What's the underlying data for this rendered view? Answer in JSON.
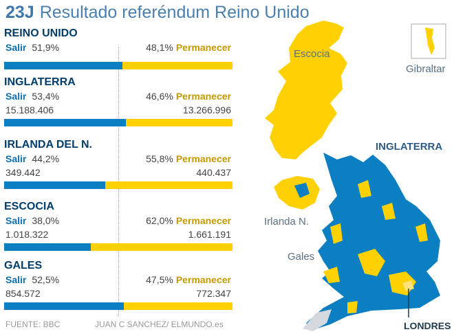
{
  "header": {
    "prefix": "23J",
    "title": "Resultado referéndum Reino Unido"
  },
  "colors": {
    "leave": "#0b7fc1",
    "remain": "#ffd100",
    "heading": "#003d6b"
  },
  "labels": {
    "leave": "Salir",
    "remain": "Permanecer"
  },
  "chart_data": {
    "type": "bar",
    "stacked": true,
    "orientation": "horizontal",
    "categories": [
      "REINO UNIDO",
      "INGLATERRA",
      "IRLANDA DEL N.",
      "ESCOCIA",
      "GALES"
    ],
    "series": [
      {
        "name": "Salir",
        "percent_labels": [
          "51,9%",
          "53,4%",
          "44,2%",
          "38,0%",
          "52,5%"
        ],
        "values": [
          51.9,
          53.4,
          44.2,
          38.0,
          52.5
        ],
        "votes": [
          "",
          "15.188.406",
          "349.442",
          "1.018.322",
          "854.572"
        ]
      },
      {
        "name": "Permanecer",
        "percent_labels": [
          "48,1%",
          "46,6%",
          "55,8%",
          "62,0%",
          "47,5%"
        ],
        "values": [
          48.1,
          46.6,
          55.8,
          62.0,
          47.5
        ],
        "votes": [
          "",
          "13.266.996",
          "440.437",
          "1.661.191",
          "772.347"
        ]
      }
    ],
    "xlim": [
      0,
      100
    ],
    "reference_line": 50
  },
  "map": {
    "labels": {
      "scotland": "Escocia",
      "gibraltar": "Gibraltar",
      "england": "INGLATERRA",
      "ni": "Irlanda N.",
      "wales": "Gales",
      "london": "LONDRES"
    }
  },
  "footer": {
    "source": "FUENTE: BBC",
    "credit": "JUAN C SANCHEZ/ ELMUNDO.es"
  }
}
